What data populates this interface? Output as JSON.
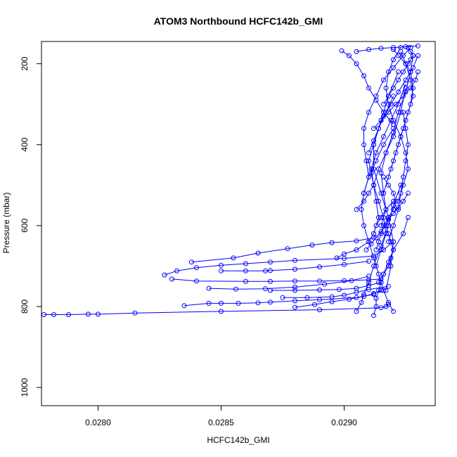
{
  "chart_data": {
    "type": "line",
    "title": "ATOM3 Northbound HCFC142b_GMI",
    "xlabel": "HCFC142b_GMI",
    "ylabel": "Pressure (mbar)",
    "xlim": [
      0.02777,
      0.02937
    ],
    "ylim": [
      1045,
      145
    ],
    "y_reversed": true,
    "x_ticks": [
      0.028,
      0.0285,
      0.029
    ],
    "x_tick_labels": [
      "0.0280",
      "0.0285",
      "0.0290"
    ],
    "y_ticks": [
      200,
      400,
      600,
      800,
      1000
    ],
    "y_tick_labels": [
      "200",
      "400",
      "600",
      "800",
      "1000"
    ],
    "grid": false,
    "legend": "none",
    "marker": "open-circle",
    "series_color": "#0000ff",
    "series": [
      {
        "x": [
          0.02778,
          0.02782,
          0.02788,
          0.02796,
          0.028,
          0.02815,
          0.0285,
          0.0289,
          0.02915,
          0.02917,
          0.02918
        ],
        "y": [
          820,
          820,
          820,
          819,
          819,
          816,
          812,
          808,
          803,
          800,
          795
        ]
      },
      {
        "x": [
          0.02835,
          0.02845,
          0.0285,
          0.02857,
          0.02865,
          0.0287,
          0.0288,
          0.0289,
          0.02905,
          0.02912
        ],
        "y": [
          798,
          792,
          792,
          792,
          791,
          789,
          786,
          783,
          778,
          770
        ]
      },
      {
        "x": [
          0.02827,
          0.02832,
          0.0284,
          0.0285,
          0.0286,
          0.0287,
          0.0288,
          0.029,
          0.02912,
          0.02916,
          0.0292
        ],
        "y": [
          722,
          712,
          704,
          698,
          694,
          690,
          686,
          681,
          675,
          660,
          640
        ]
      },
      {
        "x": [
          0.0283,
          0.0284,
          0.0286,
          0.0287,
          0.0288,
          0.0289,
          0.029,
          0.0291,
          0.02915
        ],
        "y": [
          732,
          737,
          738,
          738,
          737,
          737,
          736,
          734,
          732
        ]
      },
      {
        "x": [
          0.02838,
          0.02855,
          0.02865,
          0.02877,
          0.02887,
          0.02895,
          0.02905,
          0.02912
        ],
        "y": [
          690,
          680,
          668,
          657,
          648,
          642,
          638,
          630
        ]
      },
      {
        "x": [
          0.0285,
          0.0286,
          0.02868,
          0.0287,
          0.0288,
          0.0289,
          0.029,
          0.0291
        ],
        "y": [
          712,
          712,
          712,
          711,
          708,
          702,
          696,
          688
        ]
      },
      {
        "x": [
          0.0287,
          0.0288,
          0.0289,
          0.02898,
          0.02905,
          0.0291,
          0.02915
        ],
        "y": [
          760,
          760,
          759,
          758,
          755,
          748,
          740
        ]
      },
      {
        "x": [
          0.02875,
          0.02885,
          0.02895,
          0.029,
          0.02905,
          0.0291,
          0.02918
        ],
        "y": [
          778,
          778,
          776,
          772,
          765,
          758,
          750
        ]
      },
      {
        "x": [
          0.02845,
          0.02856,
          0.02868,
          0.0288,
          0.02892,
          0.02903,
          0.0291
        ],
        "y": [
          755,
          757,
          756,
          752,
          745,
          736,
          725
        ]
      },
      {
        "x": [
          0.0288,
          0.02888,
          0.02895,
          0.02902,
          0.02908,
          0.02912,
          0.02915
        ],
        "y": [
          802,
          795,
          788,
          782,
          775,
          768,
          760
        ]
      },
      {
        "x": [
          0.02897,
          0.029,
          0.02905,
          0.0291,
          0.02912,
          0.02913,
          0.02915,
          0.02917,
          0.0292
        ],
        "y": [
          680,
          670,
          660,
          640,
          620,
          600,
          580,
          560,
          540
        ]
      },
      {
        "x": [
          0.02905,
          0.02907,
          0.02908,
          0.0291,
          0.02912,
          0.02915,
          0.02918,
          0.0292,
          0.02923
        ],
        "y": [
          812,
          790,
          770,
          740,
          700,
          650,
          600,
          550,
          500
        ]
      },
      {
        "x": [
          0.02912,
          0.02913,
          0.02913,
          0.02914,
          0.02915,
          0.02916,
          0.02918,
          0.0292,
          0.02924,
          0.02926
        ],
        "y": [
          822,
          800,
          780,
          760,
          740,
          720,
          690,
          660,
          620,
          580
        ]
      },
      {
        "x": [
          0.0292,
          0.02918,
          0.02916,
          0.02914,
          0.02912,
          0.0291,
          0.02908,
          0.02907,
          0.02908,
          0.0291,
          0.02913,
          0.02916,
          0.0292
        ],
        "y": [
          812,
          790,
          760,
          720,
          680,
          640,
          600,
          560,
          520,
          480,
          440,
          400,
          360
        ]
      },
      {
        "x": [
          0.02917,
          0.02919,
          0.0292,
          0.02918,
          0.02915,
          0.02912,
          0.02912,
          0.02915,
          0.02918,
          0.02922
        ],
        "y": [
          760,
          700,
          640,
          580,
          520,
          460,
          400,
          340,
          280,
          220
        ]
      },
      {
        "x": [
          0.02913,
          0.02915,
          0.02917,
          0.02916,
          0.02914,
          0.02912,
          0.02914,
          0.02917,
          0.0292,
          0.02923,
          0.02925
        ],
        "y": [
          700,
          660,
          620,
          580,
          540,
          500,
          460,
          420,
          380,
          320,
          260
        ]
      },
      {
        "x": [
          0.02905,
          0.02908,
          0.0291,
          0.02912,
          0.02911,
          0.0291,
          0.02912,
          0.02914,
          0.02917,
          0.0292
        ],
        "y": [
          560,
          540,
          520,
          500,
          470,
          440,
          400,
          360,
          320,
          280
        ]
      },
      {
        "x": [
          0.02908,
          0.0291,
          0.02909,
          0.02908,
          0.02908,
          0.0291,
          0.02913,
          0.02916,
          0.0292,
          0.02924,
          0.02927
        ],
        "y": [
          520,
          480,
          440,
          400,
          360,
          320,
          280,
          240,
          210,
          180,
          160
        ]
      },
      {
        "x": [
          0.02918,
          0.0292,
          0.02922,
          0.02923,
          0.02924,
          0.02925,
          0.02926,
          0.02925,
          0.02924
        ],
        "y": [
          640,
          600,
          560,
          520,
          480,
          440,
          400,
          360,
          320
        ]
      },
      {
        "x": [
          0.02915,
          0.02917,
          0.02916,
          0.02915,
          0.02917,
          0.0292,
          0.02922,
          0.02925,
          0.02927,
          0.02928
        ],
        "y": [
          600,
          560,
          520,
          470,
          420,
          370,
          320,
          270,
          220,
          180
        ]
      },
      {
        "x": [
          0.02912,
          0.02914,
          0.02913,
          0.02912,
          0.02911,
          0.02913,
          0.02916,
          0.02919,
          0.02922,
          0.02925
        ],
        "y": [
          620,
          580,
          540,
          500,
          460,
          420,
          380,
          340,
          300,
          250
        ]
      },
      {
        "x": [
          0.02922,
          0.02924,
          0.02926,
          0.02925,
          0.02923,
          0.0292,
          0.02918,
          0.02917,
          0.02918,
          0.0292,
          0.02923
        ],
        "y": [
          540,
          500,
          460,
          420,
          380,
          340,
          300,
          260,
          220,
          190,
          160
        ]
      },
      {
        "x": [
          0.0291,
          0.02912,
          0.02914,
          0.02916,
          0.02919,
          0.02922,
          0.02925,
          0.02928,
          0.0293
        ],
        "y": [
          420,
          390,
          360,
          330,
          300,
          270,
          240,
          210,
          180
        ]
      },
      {
        "x": [
          0.02899,
          0.02902,
          0.02905,
          0.02908,
          0.0291,
          0.02913,
          0.02916,
          0.0292
        ],
        "y": [
          168,
          180,
          200,
          230,
          260,
          290,
          320,
          350
        ]
      },
      {
        "x": [
          0.02905,
          0.0291,
          0.02915,
          0.0292,
          0.02925,
          0.0293
        ],
        "y": [
          170,
          165,
          162,
          160,
          158,
          156
        ]
      },
      {
        "x": [
          0.02923,
          0.02925,
          0.02927,
          0.02928,
          0.02926,
          0.02924,
          0.02922,
          0.0292,
          0.02918,
          0.02916
        ],
        "y": [
          170,
          200,
          240,
          280,
          320,
          360,
          400,
          440,
          480,
          520
        ]
      },
      {
        "x": [
          0.02919,
          0.02921,
          0.02923,
          0.02925,
          0.02927,
          0.02928,
          0.02927,
          0.02925,
          0.02922,
          0.0292
        ],
        "y": [
          460,
          420,
          380,
          340,
          300,
          260,
          220,
          200,
          180,
          165
        ]
      },
      {
        "x": [
          0.02913,
          0.02914,
          0.02915,
          0.02916,
          0.02918,
          0.0292,
          0.02921,
          0.0292,
          0.02918,
          0.02916
        ],
        "y": [
          660,
          640,
          620,
          600,
          580,
          560,
          540,
          520,
          500,
          480
        ]
      },
      {
        "x": [
          0.02914,
          0.02916,
          0.02918,
          0.02919,
          0.0292,
          0.02919,
          0.02918,
          0.02917,
          0.02918,
          0.0292
        ],
        "y": [
          740,
          720,
          700,
          680,
          660,
          640,
          620,
          600,
          580,
          560
        ]
      },
      {
        "x": [
          0.02909,
          0.02911,
          0.02913,
          0.02915,
          0.02917,
          0.02918,
          0.0292,
          0.02922,
          0.02924,
          0.02926
        ],
        "y": [
          660,
          645,
          630,
          615,
          600,
          585,
          570,
          555,
          540,
          520
        ]
      },
      {
        "x": [
          0.02916,
          0.02918,
          0.0292,
          0.02922,
          0.02924,
          0.02926,
          0.02927,
          0.02928,
          0.02927,
          0.02926
        ],
        "y": [
          300,
          280,
          260,
          240,
          220,
          200,
          190,
          180,
          170,
          160
        ]
      },
      {
        "x": [
          0.02912,
          0.02915,
          0.02918,
          0.02921,
          0.02924,
          0.02927,
          0.02929,
          0.0293
        ],
        "y": [
          360,
          340,
          320,
          300,
          280,
          260,
          240,
          220
        ]
      }
    ]
  }
}
